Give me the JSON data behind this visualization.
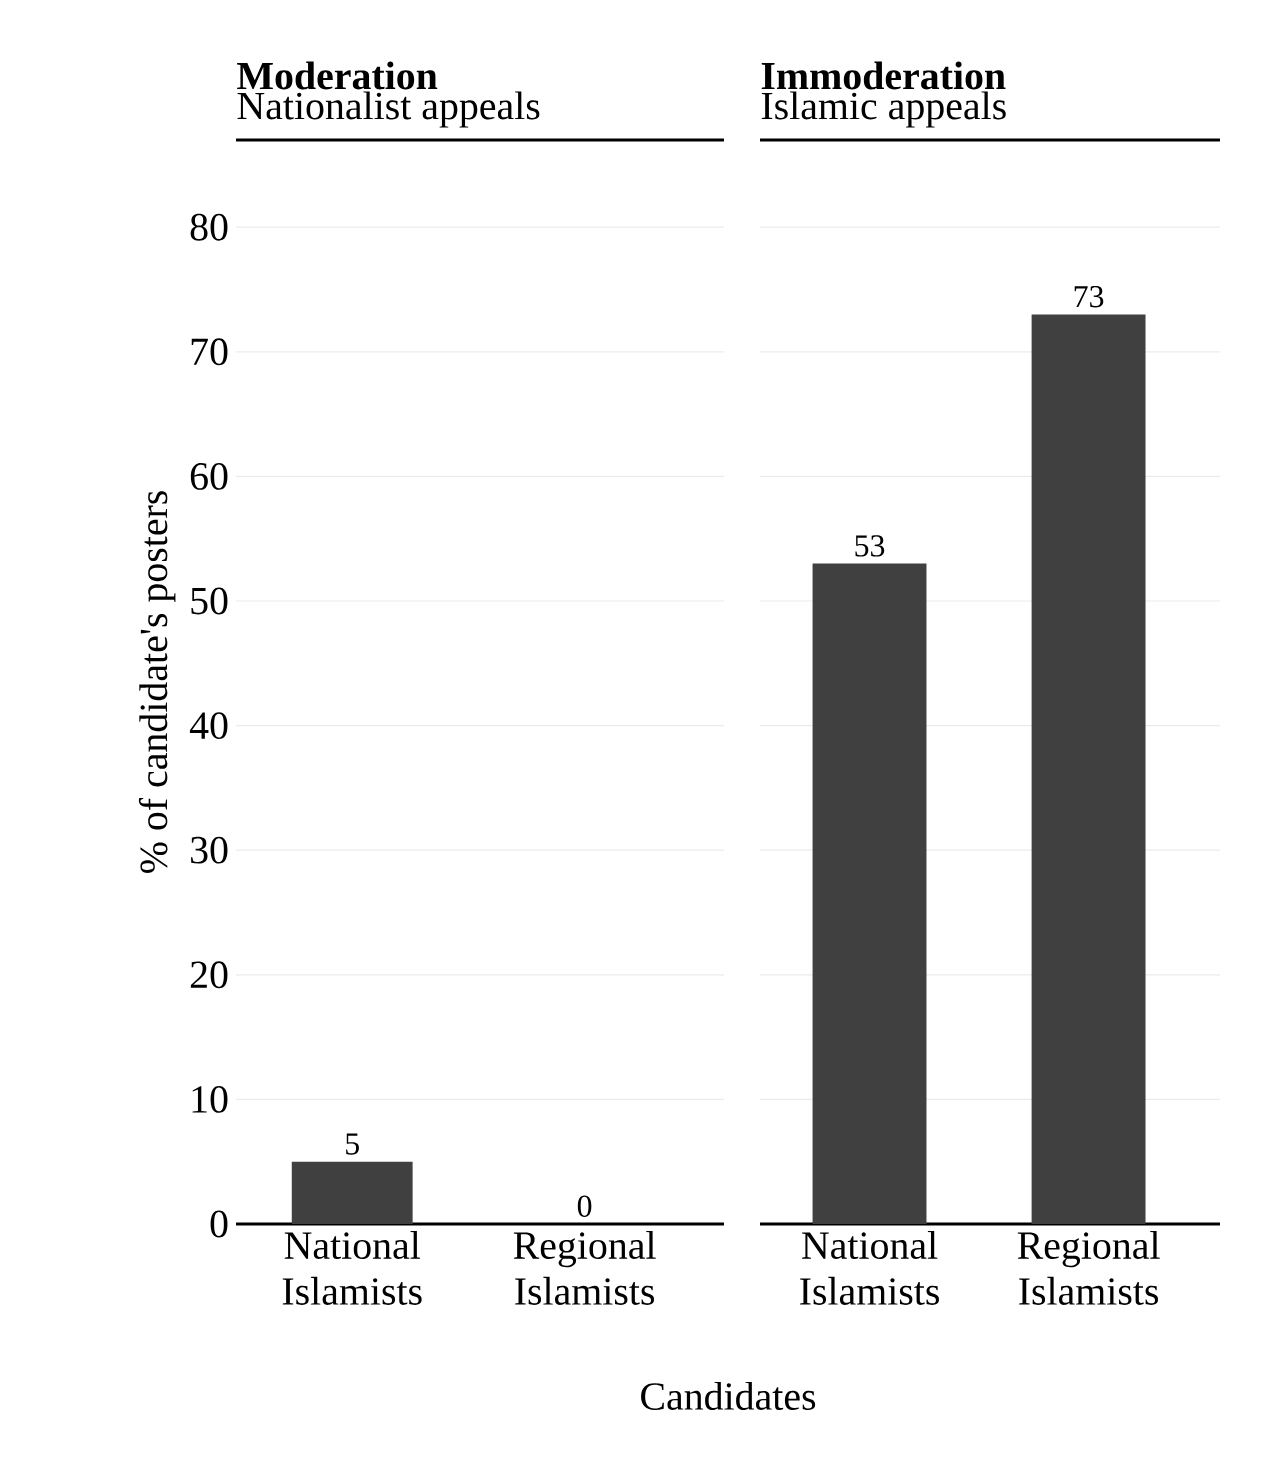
{
  "chart_data": [
    {
      "type": "bar",
      "title": "Moderation",
      "subtitle": "Nationalist appeals",
      "ylabel": "% of candidate's posters",
      "xlabel": "Candidates",
      "categories": [
        "National Islamists",
        "Regional Islamists"
      ],
      "values": [
        5,
        0
      ],
      "color": "#404040",
      "ylim": [
        0,
        87
      ],
      "yticks": [
        0,
        10,
        20,
        30,
        40,
        50,
        60,
        70,
        80
      ],
      "grid": "y",
      "data_labels": true
    },
    {
      "type": "bar",
      "title": "Immoderation",
      "subtitle": "Islamic appeals",
      "categories": [
        "National Islamists",
        "Regional Islamists"
      ],
      "values": [
        53,
        73
      ],
      "color": "#404040",
      "ylim": [
        0,
        87
      ],
      "yticks": [
        0,
        10,
        20,
        30,
        40,
        50,
        60,
        70,
        80
      ],
      "grid": "y",
      "data_labels": true,
      "tick_labels": "x"
    }
  ]
}
